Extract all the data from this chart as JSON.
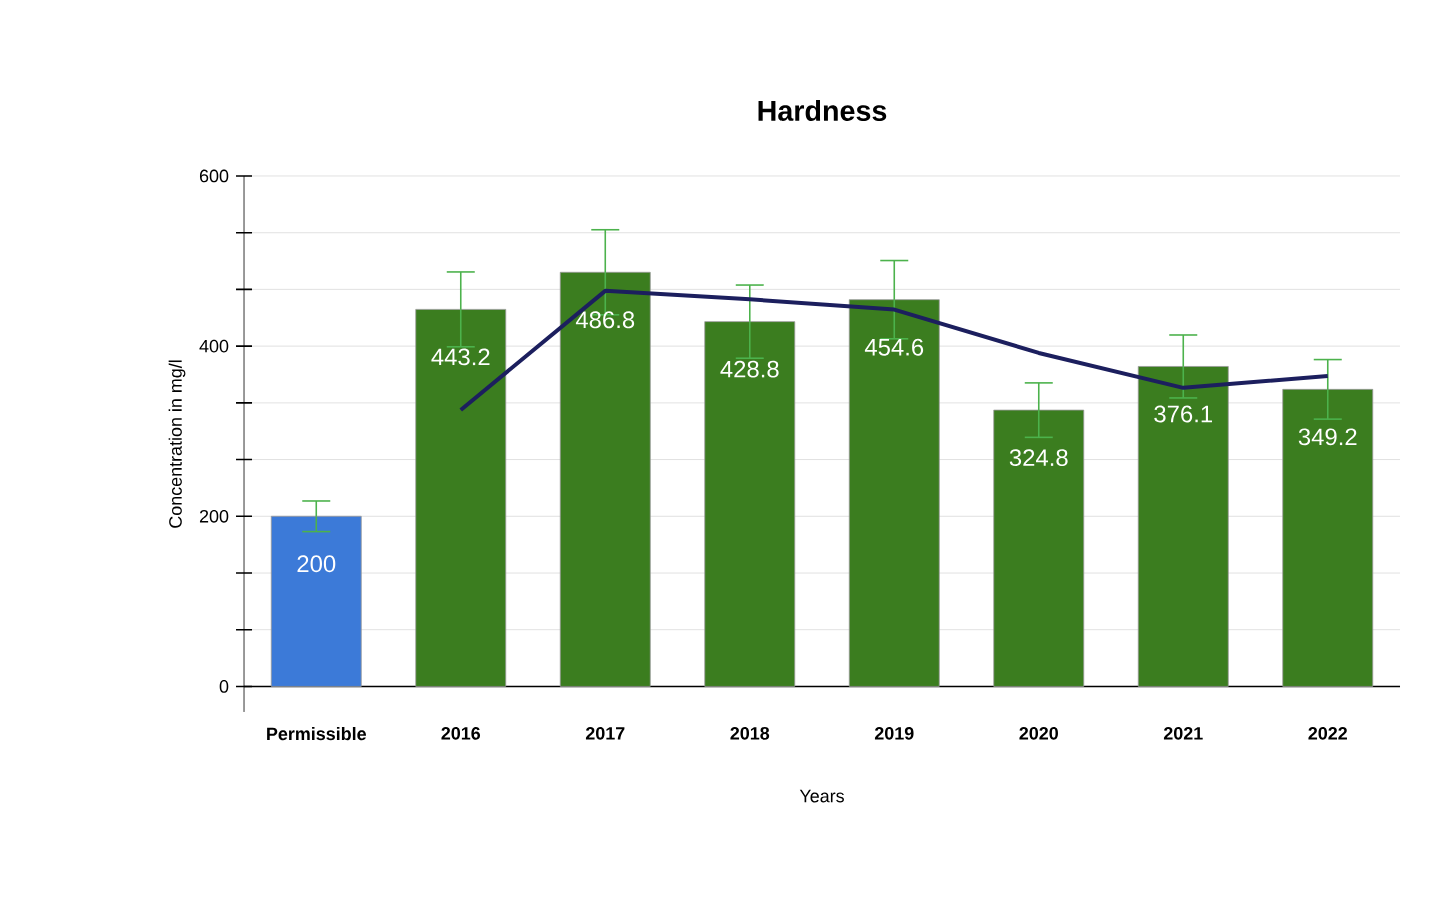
{
  "chart_data": {
    "type": "bar",
    "title": "Hardness",
    "xlabel": "Years",
    "ylabel": "Concentration in mg/l",
    "categories": [
      "Permissible",
      "2016",
      "2017",
      "2018",
      "2019",
      "2020",
      "2021",
      "2022"
    ],
    "series": [
      {
        "colors": [
          "#3c7ad8",
          "#3b7d1f",
          "#3b7d1f",
          "#3b7d1f",
          "#3b7d1f",
          "#3b7d1f",
          "#3b7d1f",
          "#3b7d1f"
        ],
        "values": [
          200,
          443.2,
          486.8,
          428.8,
          454.6,
          324.8,
          376.1,
          349.2
        ],
        "errors": [
          18,
          44,
          50,
          43,
          46,
          32,
          37,
          35
        ],
        "value_labels": [
          "200",
          "443.2",
          "486.8",
          "428.8",
          "454.6",
          "324.8",
          "376.1",
          "349.2"
        ]
      },
      {
        "type": "line",
        "color": "#1c1f5e",
        "values": [
          null,
          325,
          465,
          455,
          443,
          392,
          351,
          365
        ]
      }
    ],
    "grid": "y",
    "ylim": [
      -30,
      600
    ],
    "yticks": [
      0,
      {
        "value": 66.7,
        "label": null
      },
      {
        "value": 133.3,
        "label": null
      },
      200,
      {
        "value": 266.7,
        "label": null
      },
      {
        "value": 333.3,
        "label": null
      },
      400,
      {
        "value": 466.7,
        "label": null
      },
      {
        "value": 533.3,
        "label": null
      },
      600
    ]
  }
}
